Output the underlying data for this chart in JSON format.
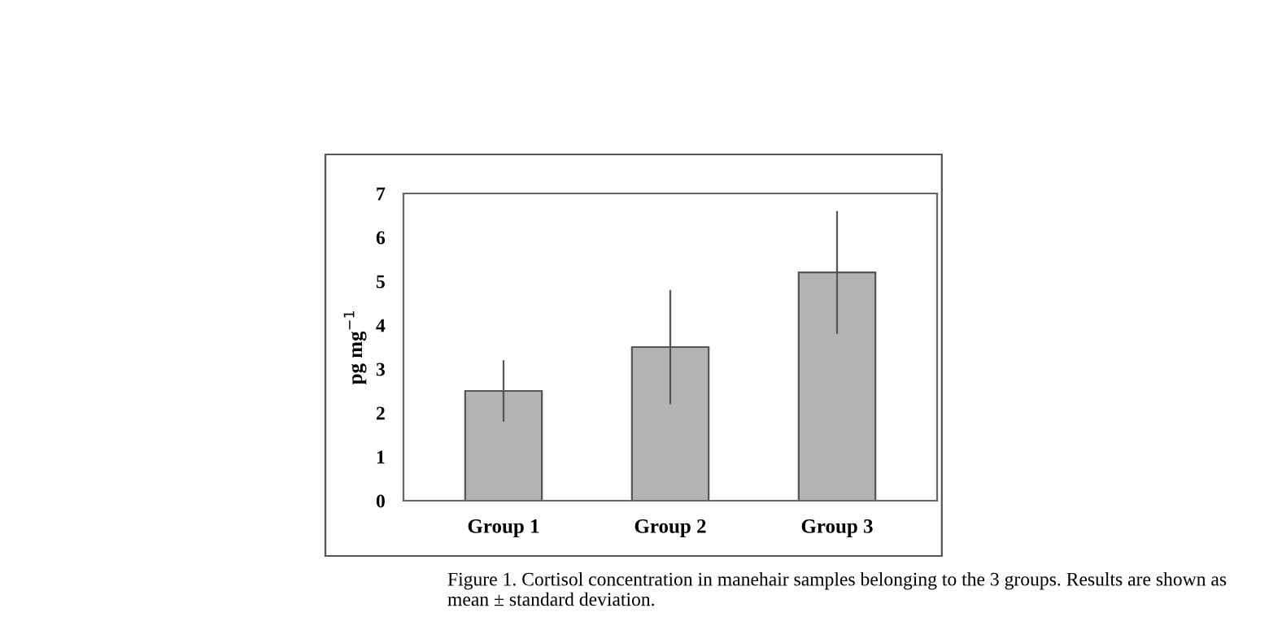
{
  "chart_data": {
    "type": "bar",
    "ylabel": "pg mg$^{−1}$",
    "categories": [
      "Group 1",
      "Group 2",
      "Group 3"
    ],
    "values": [
      2.5,
      3.5,
      5.2
    ],
    "errors": [
      0.7,
      1.3,
      1.4
    ],
    "color": "#b3b3b3",
    "ylim": [
      0,
      7
    ],
    "yticks": [
      0,
      1,
      2,
      3,
      4,
      5,
      6,
      7
    ],
    "grid": false,
    "annotations": [
      "Figure 1. Cortisol concentration in manehair samples belonging to the 3 groups. Results are shown as mean ± standard deviation."
    ]
  }
}
